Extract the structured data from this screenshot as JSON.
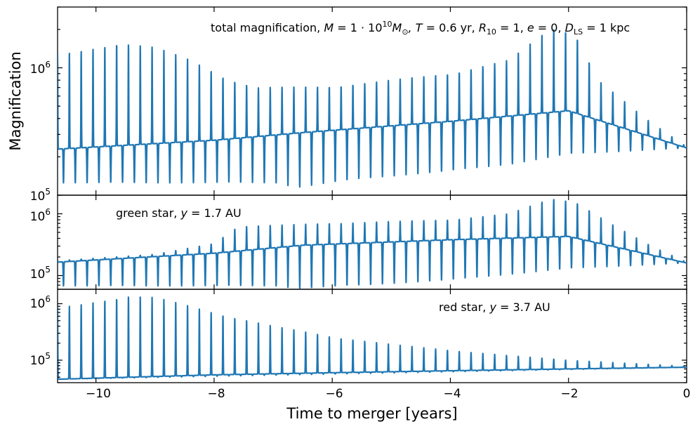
{
  "chart_data": [
    {
      "type": "line",
      "panel": "top",
      "annotation": "total magnification, M = 1·10^10 M☉, T = 0.6 yr, R10 = 1, e = 0, DLS = 1 kpc",
      "annotation_parts": {
        "prefix": "total magnification, ",
        "M_sym": "M",
        "M_eq": " = 1 · 10",
        "M_exp": "10",
        "M_unit": "M",
        "M_sun": "⊙",
        "T": ", T",
        "T_val": " = 0.6 yr, ",
        "R": "R",
        "R_sub": "10",
        "R_val": " = 1, ",
        "e": "e",
        "e_val": " = 0, ",
        "D": "D",
        "D_sub": "LS",
        "D_val": " = 1 kpc"
      },
      "ylabel": "Magnification",
      "yscale": "log",
      "ylim": [
        100000,
        3000000
      ],
      "ytick_labels": [
        {
          "value": 100000,
          "base": "10",
          "exp": "5"
        },
        {
          "value": 1000000,
          "base": "10",
          "exp": "6"
        }
      ],
      "xlim": [
        -10.65,
        0
      ],
      "series": [
        {
          "name": "total magnification",
          "color": "#1f77b4",
          "baseline": [
            [
              -10.65,
              230000
            ],
            [
              -8,
              270000
            ],
            [
              -6.5,
              310000
            ],
            [
              -4,
              380000
            ],
            [
              -2,
              460000
            ],
            [
              0,
              235000
            ]
          ],
          "peak_envelope": [
            [
              -10.4,
              1300000
            ],
            [
              -9.6,
              1600000
            ],
            [
              -9.0,
              1450000
            ],
            [
              -8.4,
              1150000
            ],
            [
              -7.8,
              830000
            ],
            [
              -7.3,
              700000
            ],
            [
              -6.0,
              710000
            ],
            [
              -4.0,
              900000
            ],
            [
              -3.0,
              1150000
            ],
            [
              -2.3,
              2050000
            ],
            [
              -1.9,
              1900000
            ],
            [
              -1.5,
              800000
            ],
            [
              -0.7,
              400000
            ],
            [
              0,
              240000
            ]
          ],
          "dip_envelope": [
            [
              -6.95,
              125000
            ],
            [
              -6.6,
              115000
            ],
            [
              -5.5,
              135000
            ],
            [
              -4.0,
              155000
            ],
            [
              -3.0,
              175000
            ],
            [
              -2.0,
              210000
            ],
            [
              0,
              235000
            ]
          ]
        }
      ]
    },
    {
      "type": "line",
      "panel": "middle",
      "annotation": "green star, y = 1.7 AU",
      "annotation_parts": {
        "prefix": "green star, ",
        "y": "y",
        "val": " = 1.7 AU"
      },
      "yscale": "log",
      "ylim": [
        60000,
        2000000
      ],
      "ytick_labels": [
        {
          "value": 100000,
          "base": "10",
          "exp": "5"
        },
        {
          "value": 1000000,
          "base": "10",
          "exp": "6"
        }
      ],
      "xlim": [
        -10.65,
        0
      ],
      "series": [
        {
          "name": "green star",
          "color": "#1f77b4",
          "baseline": [
            [
              -10.65,
              165000
            ],
            [
              -8,
              230000
            ],
            [
              -6.5,
              310000
            ],
            [
              -4,
              380000
            ],
            [
              -2,
              430000
            ],
            [
              0,
              160000
            ]
          ],
          "peak_envelope": [
            [
              -10.6,
              175000
            ],
            [
              -9.0,
              220000
            ],
            [
              -8.0,
              330000
            ],
            [
              -7.6,
              620000
            ],
            [
              -7.2,
              640000
            ],
            [
              -6.0,
              700000
            ],
            [
              -4.0,
              800000
            ],
            [
              -3.0,
              1000000
            ],
            [
              -2.3,
              1750000
            ],
            [
              -1.9,
              1600000
            ],
            [
              -1.3,
              700000
            ],
            [
              -0.6,
              300000
            ],
            [
              0,
              165000
            ]
          ],
          "dip_envelope": [
            [
              -6.95,
              68000
            ],
            [
              -6.6,
              62000
            ],
            [
              -5.5,
              70000
            ],
            [
              -4.0,
              85000
            ],
            [
              -3.0,
              105000
            ],
            [
              -2.0,
              130000
            ],
            [
              0,
              160000
            ]
          ]
        }
      ]
    },
    {
      "type": "line",
      "panel": "bottom",
      "annotation": "red star, y = 3.7 AU",
      "annotation_parts": {
        "prefix": "red star, ",
        "y": "y",
        "val": " = 3.7 AU"
      },
      "yscale": "log",
      "ylim": [
        40000,
        1800000
      ],
      "ytick_labels": [
        {
          "value": 100000,
          "base": "10",
          "exp": "5"
        },
        {
          "value": 1000000,
          "base": "10",
          "exp": "6"
        }
      ],
      "xlim": [
        -10.65,
        0
      ],
      "xlabel": "Time to merger [years]",
      "xticks": [
        -10,
        -8,
        -6,
        -4,
        -2,
        0
      ],
      "xtick_labels": [
        "−10",
        "−8",
        "−6",
        "−4",
        "−2",
        "0"
      ],
      "series": [
        {
          "name": "red star",
          "color": "#1f77b4",
          "baseline": [
            [
              -10.65,
              46000
            ],
            [
              -8,
              55000
            ],
            [
              -6,
              60000
            ],
            [
              -4,
              65000
            ],
            [
              -2,
              70000
            ],
            [
              0,
              75000
            ]
          ],
          "peak_envelope": [
            [
              -10.4,
              900000
            ],
            [
              -10.0,
              1100000
            ],
            [
              -9.5,
              1400000
            ],
            [
              -9.0,
              1300000
            ],
            [
              -8.0,
              700000
            ],
            [
              -7.0,
              400000
            ],
            [
              -6.0,
              260000
            ],
            [
              -5.0,
              190000
            ],
            [
              -4.0,
              150000
            ],
            [
              -3.0,
              120000
            ],
            [
              -2.0,
              100000
            ],
            [
              -1.0,
              88000
            ],
            [
              0,
              78000
            ]
          ],
          "dip_envelope": [
            [
              -10.65,
              46000
            ],
            [
              0,
              75000
            ]
          ]
        }
      ]
    }
  ],
  "period_years": 0.2,
  "colors": {
    "line": "#1f77b4",
    "axes": "#000000"
  }
}
